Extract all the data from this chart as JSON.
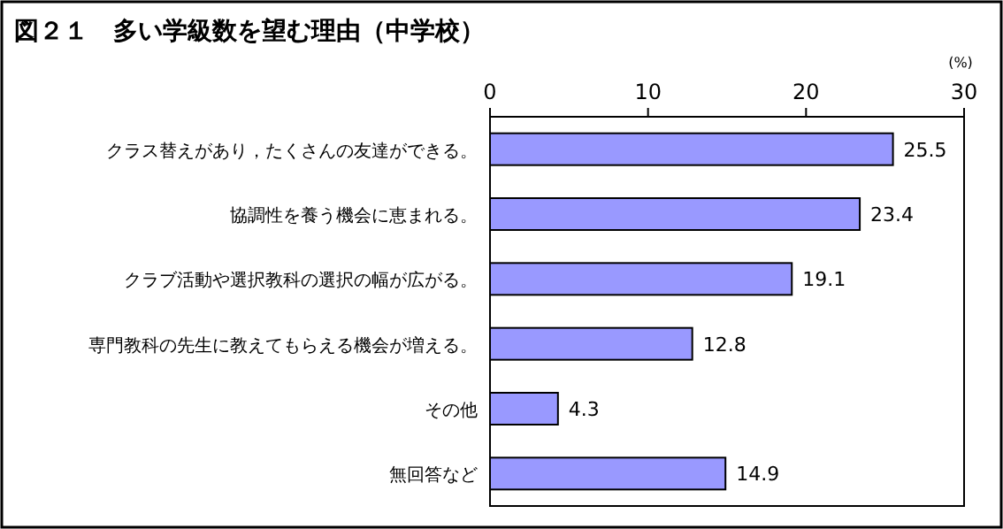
{
  "chart_data": {
    "type": "bar",
    "orientation": "horizontal",
    "title": "図２１　多い学級数を望む理由（中学校）",
    "xlabel": "(%)",
    "categories": [
      "クラス替えがあり，たくさんの友達ができる。",
      "協調性を養う機会に恵まれる。",
      "クラブ活動や選択教科の選択の幅が広がる。",
      "専門教科の先生に教えてもらえる機会が増える。",
      "その他",
      "無回答など"
    ],
    "values": [
      25.5,
      23.4,
      19.1,
      12.8,
      4.3,
      14.9
    ],
    "color": "#9999ff",
    "xlim": [
      0,
      30
    ],
    "xticks": [
      0,
      10,
      20,
      30
    ],
    "data_labels": true,
    "grid": false
  }
}
